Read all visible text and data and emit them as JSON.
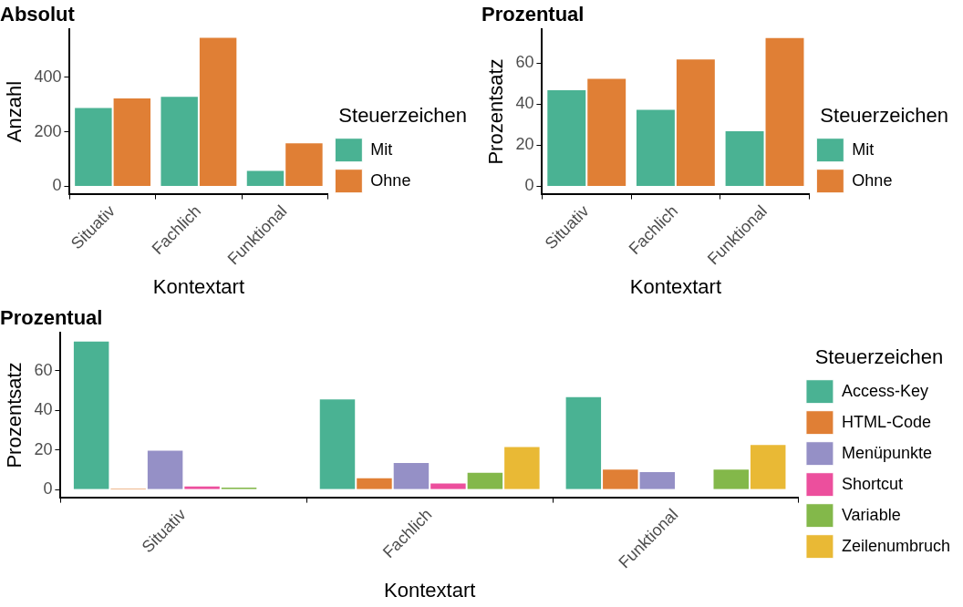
{
  "chart_data": [
    {
      "type": "bar",
      "title": "Absolut",
      "xlabel": "Kontextart",
      "ylabel": "Anzahl",
      "legend_title": "Steuerzeichen",
      "legend": "right",
      "grid": false,
      "categories": [
        "Situativ",
        "Fachlich",
        "Funktional"
      ],
      "ylim": [
        -27,
        574
      ],
      "yticks": [
        0,
        200,
        400
      ],
      "series": [
        {
          "name": "Mit",
          "color": "#4ab293",
          "values": [
            290,
            331,
            60
          ]
        },
        {
          "name": "Ohne",
          "color": "#e07f35",
          "values": [
            325,
            547,
            161
          ]
        }
      ]
    },
    {
      "type": "bar",
      "title": "Prozentual",
      "xlabel": "Kontextart",
      "ylabel": "Prozentsatz",
      "legend_title": "Steuerzeichen",
      "legend": "right",
      "grid": false,
      "categories": [
        "Situativ",
        "Fachlich",
        "Funktional"
      ],
      "ylim": [
        -3.6,
        76.5
      ],
      "yticks": [
        0,
        20,
        40,
        60
      ],
      "series": [
        {
          "name": "Mit",
          "color": "#4ab293",
          "values": [
            47.3,
            37.8,
            27.3
          ]
        },
        {
          "name": "Ohne",
          "color": "#e07f35",
          "values": [
            52.9,
            62.3,
            72.8
          ]
        }
      ]
    },
    {
      "type": "bar",
      "title": "Prozentual",
      "xlabel": "Kontextart",
      "ylabel": "Prozentsatz",
      "legend_title": "Steuerzeichen",
      "legend": "right",
      "grid": false,
      "categories": [
        "Situativ",
        "Fachlich",
        "Funktional"
      ],
      "ylim": [
        -3.8,
        79
      ],
      "yticks": [
        0,
        20,
        40,
        60
      ],
      "series": [
        {
          "name": "Access-Key",
          "color": "#4ab293",
          "values": [
            75.2,
            46,
            47.1
          ]
        },
        {
          "name": "HTML-Code",
          "color": "#e07f35",
          "values": [
            1,
            6.2,
            10.6
          ]
        },
        {
          "name": "Menüpunkte",
          "color": "#9590c6",
          "values": [
            20.1,
            13.9,
            9.3
          ]
        },
        {
          "name": "Shortcut",
          "color": "#ec4f9d",
          "values": [
            2.1,
            3.6,
            null
          ]
        },
        {
          "name": "Variable",
          "color": "#83b84a",
          "values": [
            1.5,
            9,
            10.6
          ]
        },
        {
          "name": "Zeilenumbruch",
          "color": "#e9b935",
          "values": [
            null,
            22,
            23
          ]
        }
      ]
    }
  ]
}
